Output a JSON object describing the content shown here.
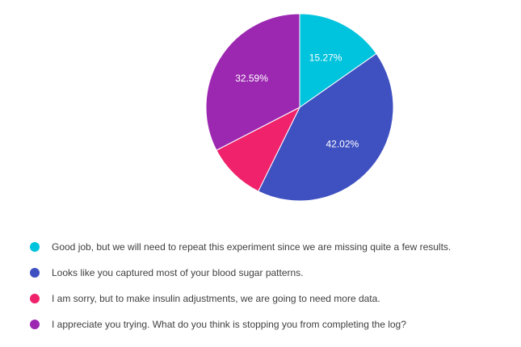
{
  "chart_data": {
    "type": "pie",
    "categories": [
      "Good job, but we will need to repeat this experiment since we are missing quite a few results.",
      "Looks like you captured most of your blood sugar patterns.",
      "I am sorry, but to make insulin adjustments, we are going to need more data.",
      "I appreciate you trying. What do you think is stopping you from completing the log?"
    ],
    "values": [
      15.27,
      42.02,
      10.12,
      32.59
    ],
    "labels": [
      "15.27%",
      "42.02%",
      "",
      "32.59%"
    ],
    "colors": [
      "#00c3dd",
      "#3f51c1",
      "#f0226b",
      "#9c28b1"
    ],
    "legend_position": "bottom"
  }
}
